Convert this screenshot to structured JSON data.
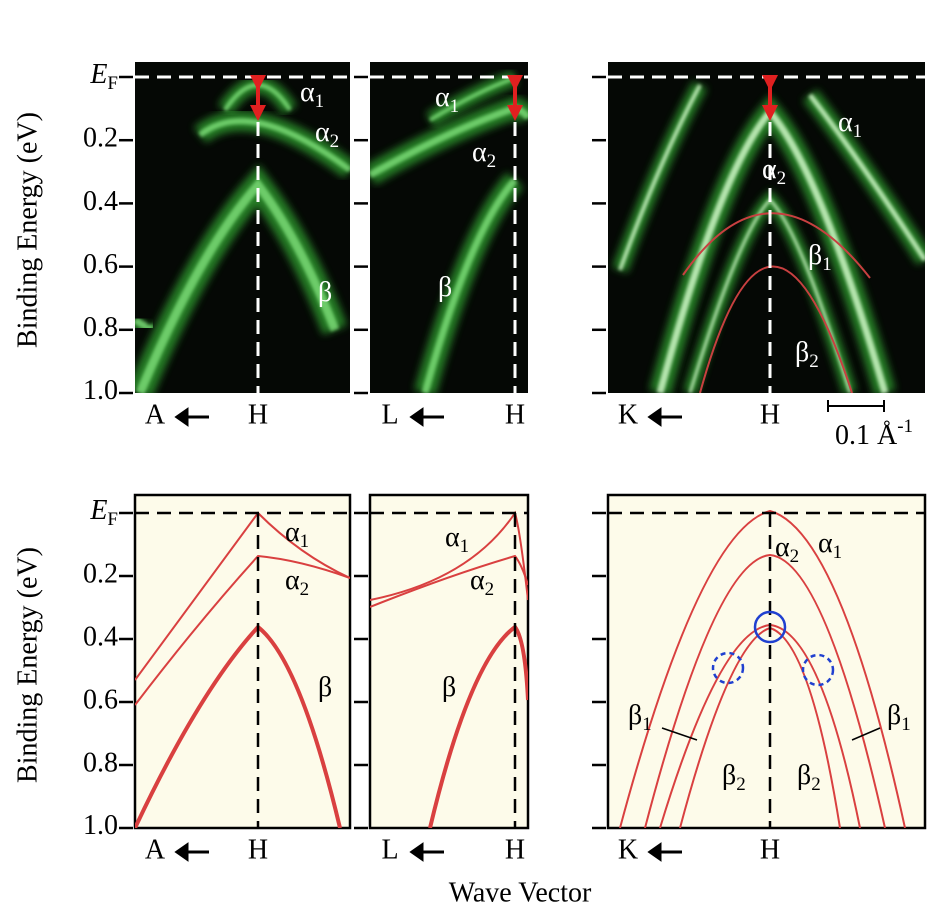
{
  "figure": {
    "y_axis_label": "Binding Energy (eV)",
    "x_axis_label": "Wave Vector",
    "scale_bar": {
      "text": "0.1 Å",
      "sup": "-1"
    },
    "ylim": [
      0,
      1
    ],
    "yticks": [
      {
        "value": 0,
        "label": "E",
        "sub": "F"
      },
      0.2,
      0.4,
      0.6,
      0.8,
      {
        "value": 1,
        "label": "1.0"
      }
    ],
    "rows": [
      {
        "panels": [
          {
            "x_left": "A",
            "x_center": "H",
            "band_labels": [
              {
                "text": "α",
                "sub": "1"
              },
              {
                "text": "α",
                "sub": "2"
              },
              {
                "text": "β"
              }
            ]
          },
          {
            "x_left": "L",
            "x_center": "H",
            "band_labels": [
              {
                "text": "α",
                "sub": "1"
              },
              {
                "text": "α",
                "sub": "2"
              },
              {
                "text": "β"
              }
            ]
          },
          {
            "x_left": "K",
            "x_center": "H",
            "band_labels": [
              {
                "text": "α",
                "sub": "1"
              },
              {
                "text": "α",
                "sub": "2"
              },
              {
                "text": "β",
                "sub": "1"
              },
              {
                "text": "β",
                "sub": "2"
              }
            ]
          }
        ]
      },
      {
        "panels": [
          {
            "x_left": "A",
            "x_center": "H",
            "band_labels": [
              {
                "text": "α",
                "sub": "1"
              },
              {
                "text": "α",
                "sub": "2"
              },
              {
                "text": "β"
              }
            ]
          },
          {
            "x_left": "L",
            "x_center": "H",
            "band_labels": [
              {
                "text": "α",
                "sub": "1"
              },
              {
                "text": "α",
                "sub": "2"
              },
              {
                "text": "β"
              }
            ]
          },
          {
            "x_left": "K",
            "x_center": "H",
            "band_labels": [
              {
                "text": "α",
                "sub": "2"
              },
              {
                "text": "α",
                "sub": "1"
              },
              {
                "text": "β",
                "sub": "1"
              },
              {
                "text": "β",
                "sub": "1"
              },
              {
                "text": "β",
                "sub": "2"
              },
              {
                "text": "β",
                "sub": "2"
              }
            ]
          }
        ]
      }
    ]
  }
}
